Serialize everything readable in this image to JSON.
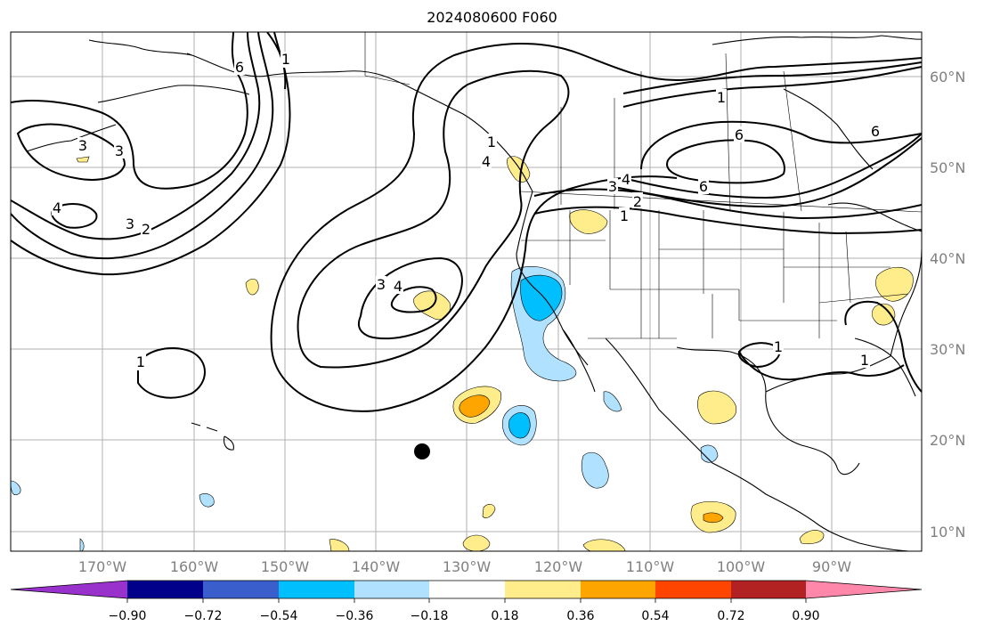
{
  "title": "2024080600 F060",
  "lat_labels": [
    "60°N",
    "50°N",
    "40°N",
    "30°N",
    "20°N",
    "10°N"
  ],
  "lon_labels": [
    "170°W",
    "160°W",
    "150°W",
    "140°W",
    "130°W",
    "120°W",
    "110°W",
    "100°W",
    "90°W"
  ],
  "colorbar": {
    "tick_labels": [
      "−0.90",
      "−0.72",
      "−0.54",
      "−0.36",
      "−0.18",
      "0.18",
      "0.36",
      "0.54",
      "0.72",
      "0.90"
    ],
    "colors": [
      "#9932cc",
      "#00008b",
      "#3a5fcd",
      "#00bfff",
      "#b0e2ff",
      "#ffffff",
      "#ffec8b",
      "#ffa500",
      "#ff4500",
      "#b22222",
      "#ff88aa"
    ]
  },
  "contour_labels": {
    "c1": "1",
    "c2": "2",
    "c3": "3",
    "c4": "4",
    "c6": "6"
  },
  "marker": "storm-center-dot"
}
